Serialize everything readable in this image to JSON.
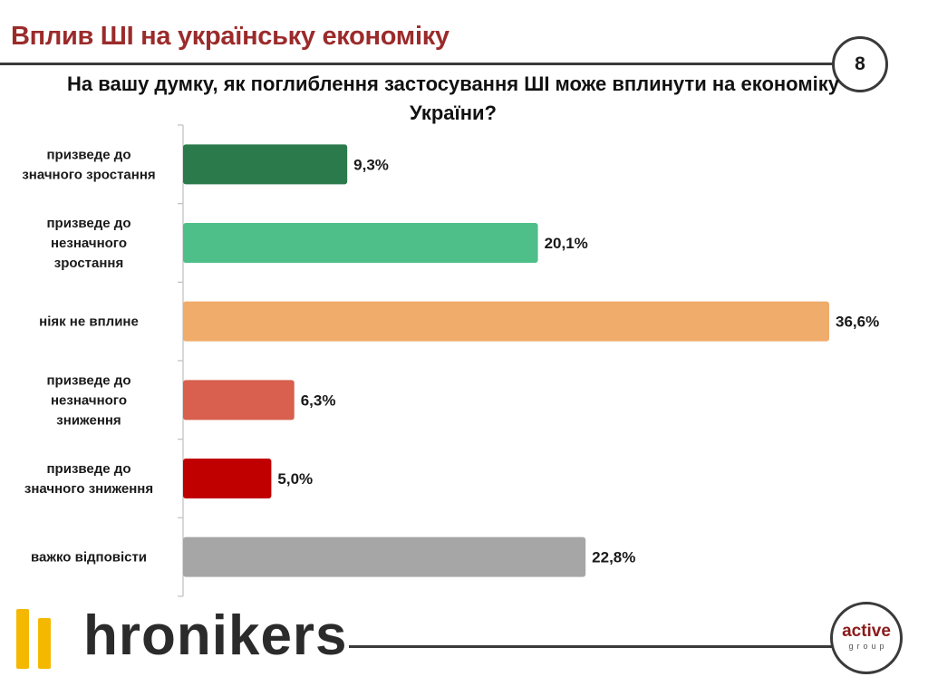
{
  "header": {
    "title": "Вплив ШІ на українську економіку",
    "page_number": "8"
  },
  "question": "На вашу думку, як поглиблення застосування ШІ може вплинути на економіку України?",
  "footer": {
    "logo_text": "hronikers",
    "partner_word": "active",
    "partner_sub": "group"
  },
  "colors": {
    "title": "#9b2b2b",
    "axis": "#bfbfbf",
    "partner": "#8b1a1a",
    "logo_mark": "#f5b800"
  },
  "chart_data": {
    "type": "bar",
    "orientation": "horizontal",
    "categories": [
      [
        "призведе до",
        "значного зростання"
      ],
      [
        "призведе до",
        "незначного",
        "зростання"
      ],
      [
        "ніяк не вплине"
      ],
      [
        "призведе до",
        "незначного",
        "зниження"
      ],
      [
        "призведе до",
        "значного зниження"
      ],
      [
        "важко відповісти"
      ]
    ],
    "values": [
      9.3,
      20.1,
      36.6,
      6.3,
      5.0,
      22.8
    ],
    "value_labels": [
      "9,3%",
      "20,1%",
      "36,6%",
      "6,3%",
      "5,0%",
      "22,8%"
    ],
    "bar_colors": [
      "#2b7a4b",
      "#4fbf89",
      "#f0ac6a",
      "#d95f4e",
      "#c00000",
      "#a6a6a6"
    ],
    "unit": "%",
    "xlim": [
      0,
      36.6
    ],
    "grid": false,
    "legend": "none"
  }
}
